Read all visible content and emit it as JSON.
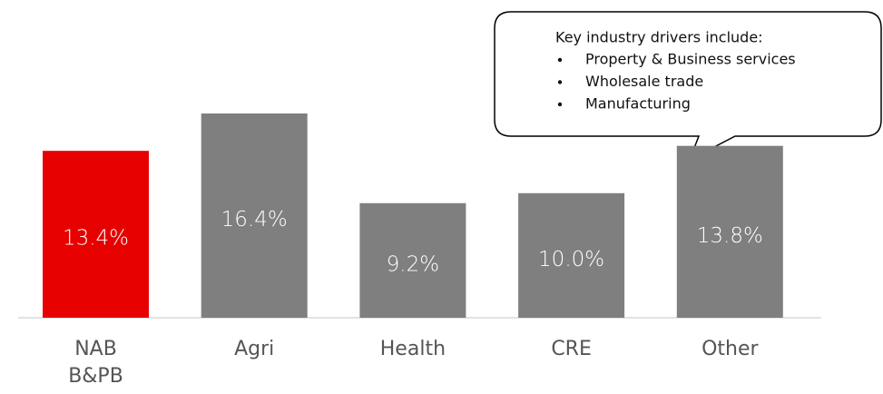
{
  "chart_data": {
    "type": "bar",
    "categories": [
      "NAB B&PB",
      "Agri",
      "Health",
      "CRE",
      "Other"
    ],
    "values": [
      13.4,
      16.4,
      9.2,
      10.0,
      13.8
    ],
    "value_labels": [
      "13.4%",
      "16.4%",
      "9.2%",
      "10.0%",
      "13.8%"
    ],
    "colors": [
      "#e60000",
      "#7f7f7f",
      "#7f7f7f",
      "#7f7f7f",
      "#7f7f7f"
    ],
    "annotation": {
      "title": "Key industry drivers include:",
      "items": [
        "Property & Business services",
        "Wholesale trade",
        "Manufacturing"
      ]
    }
  }
}
